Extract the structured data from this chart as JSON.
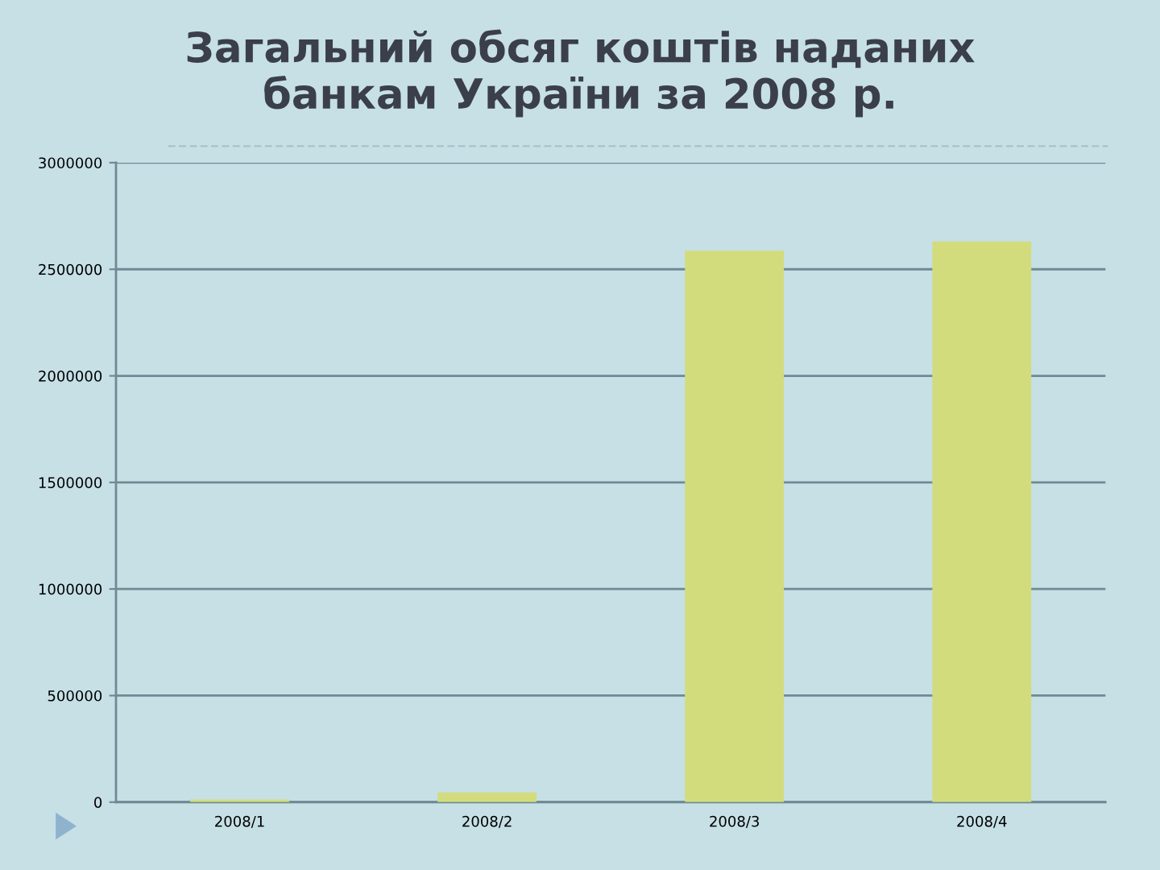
{
  "chart_data": {
    "type": "bar",
    "title": "Загальний обсяг коштів наданих\nбанкам України за 2008 р.",
    "categories": [
      "2008/1",
      "2008/2",
      "2008/3",
      "2008/4"
    ],
    "values": [
      12000,
      45000,
      2587000,
      2630000
    ],
    "color": "#d3dc7c",
    "ylim": [
      0,
      3000000
    ],
    "yticks": [
      0,
      500000,
      1000000,
      1500000,
      2000000,
      2500000,
      3000000
    ],
    "grid": "y"
  }
}
